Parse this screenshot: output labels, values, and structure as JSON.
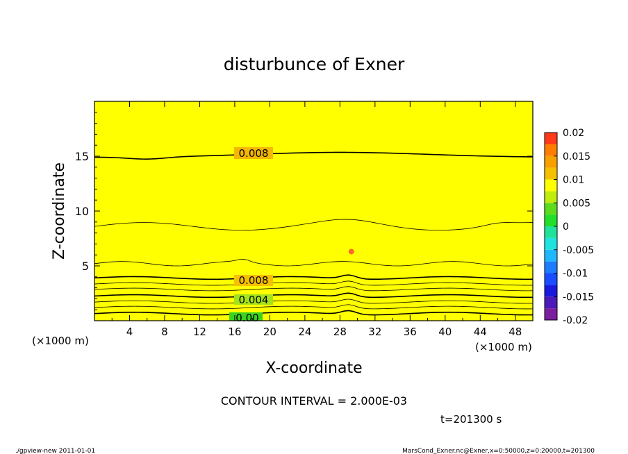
{
  "chart_data": {
    "type": "heatmap",
    "title": "disturbunce of Exner",
    "xlabel": "X-coordinate",
    "ylabel": "Z-coordinate",
    "x_unit": "(×1000 m)",
    "y_unit": "(×1000 m)",
    "xlim": [
      0,
      50
    ],
    "ylim": [
      0,
      20
    ],
    "x_ticks": [
      4,
      8,
      12,
      16,
      20,
      24,
      28,
      32,
      36,
      40,
      44,
      48
    ],
    "y_ticks": [
      5,
      10,
      15
    ],
    "colorbar": {
      "ticks": [
        "0.02",
        "0.015",
        "0.01",
        "0.005",
        "0",
        "-0.005",
        "-0.01",
        "-0.015",
        "-0.02"
      ],
      "range": [
        -0.02,
        0.02
      ],
      "step": 0.0025
    },
    "band_levels": [
      0,
      0.0025,
      0.005,
      0.0075,
      0.01,
      0.0125
    ],
    "contour_interval": 0.002,
    "contour_labels": [
      "0.008",
      "0.008",
      "0.004",
      "0.00"
    ],
    "point_max": {
      "x": 29.3,
      "z": 6.3
    },
    "annotation_interval": "CONTOUR INTERVAL = 2.000E-03",
    "annotation_time": "t=201300 s"
  },
  "footer": {
    "left": "./gpview-new  2011-01-01",
    "right": "MarsCond_Exner.nc@Exner,x=0:50000,z=0:20000,t=201300"
  }
}
